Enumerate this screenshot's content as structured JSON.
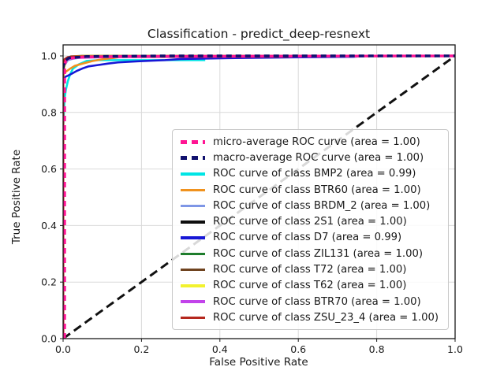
{
  "title": "Classification - predict_deep-resnext",
  "chart_data": {
    "type": "line",
    "title": "Classification - predict_deep-resnext",
    "xlabel": "False Positive Rate",
    "ylabel": "True Positive Rate",
    "xlim": [
      0.0,
      1.0
    ],
    "ylim": [
      0.0,
      1.039
    ],
    "xticks": [
      0.0,
      0.2,
      0.4,
      0.6,
      0.8,
      1.0
    ],
    "yticks": [
      0.0,
      0.2,
      0.4,
      0.6,
      0.8,
      1.0
    ],
    "grid": true,
    "grid_color": "#d9d9d9",
    "legend_position": "center-right",
    "reference_line": {
      "name": "chance-diagonal",
      "color": "#111111",
      "dash": "11 6",
      "width": 3,
      "points": [
        [
          0,
          0
        ],
        [
          1,
          1
        ]
      ]
    },
    "series": [
      {
        "name": "micro-average",
        "label": "micro-average ROC curve (area = 1.00)",
        "area": "1.00",
        "color": "#ff1493",
        "dash": "7 5",
        "width": 3.4,
        "points": [
          [
            0.004,
            0
          ],
          [
            0.004,
            0.97
          ],
          [
            0.008,
            0.985
          ],
          [
            0.02,
            0.992
          ],
          [
            0.05,
            0.996
          ],
          [
            0.15,
            0.998
          ],
          [
            0.5,
            0.999
          ],
          [
            1,
            1
          ]
        ]
      },
      {
        "name": "macro-average",
        "label": "macro-average ROC curve (area = 1.00)",
        "area": "1.00",
        "color": "#11116e",
        "dash": "7 5",
        "width": 3.4,
        "points": [
          [
            0,
            0.955
          ],
          [
            0.004,
            0.982
          ],
          [
            0.015,
            0.993
          ],
          [
            0.06,
            0.998
          ],
          [
            0.25,
            1
          ],
          [
            1,
            1
          ]
        ]
      },
      {
        "name": "BMP2",
        "label": "ROC curve of class BMP2 (area = 0.99)",
        "area": "0.99",
        "color": "#00e5e5",
        "dash": null,
        "width": 2.6,
        "points": [
          [
            0,
            0
          ],
          [
            0,
            0.74
          ],
          [
            0.002,
            0.8
          ],
          [
            0.004,
            0.85
          ],
          [
            0.007,
            0.88
          ],
          [
            0.012,
            0.91
          ],
          [
            0.018,
            0.935
          ],
          [
            0.025,
            0.955
          ],
          [
            0.04,
            0.97
          ],
          [
            0.06,
            0.982
          ],
          [
            0.09,
            0.985
          ],
          [
            0.36,
            0.985
          ],
          [
            0.36,
            0.998
          ],
          [
            0.4,
            1
          ],
          [
            1,
            1
          ]
        ]
      },
      {
        "name": "BTR60",
        "label": "ROC curve of class BTR60 (area = 1.00)",
        "area": "1.00",
        "color": "#f0921e",
        "dash": null,
        "width": 2.6,
        "points": [
          [
            0,
            0
          ],
          [
            0,
            0.935
          ],
          [
            0.008,
            0.945
          ],
          [
            0.018,
            0.955
          ],
          [
            0.03,
            0.965
          ],
          [
            0.05,
            0.973
          ],
          [
            0.075,
            0.982
          ],
          [
            0.1,
            0.988
          ],
          [
            0.13,
            0.993
          ],
          [
            0.15,
            0.997
          ],
          [
            0.17,
            1
          ],
          [
            1,
            1
          ]
        ]
      },
      {
        "name": "BRDM_2",
        "label": "ROC curve of class BRDM_2 (area = 1.00)",
        "area": "1.00",
        "color": "#7e96e6",
        "dash": null,
        "width": 2.6,
        "points": [
          [
            0,
            0
          ],
          [
            0,
            0.955
          ],
          [
            0.005,
            0.97
          ],
          [
            0.012,
            0.985
          ],
          [
            0.025,
            0.99
          ],
          [
            0.05,
            0.995
          ],
          [
            0.09,
            0.998
          ],
          [
            0.13,
            1
          ],
          [
            1,
            1
          ]
        ]
      },
      {
        "name": "2S1",
        "label": "ROC curve of class 2S1 (area = 1.00)",
        "area": "1.00",
        "color": "#0d0d0d",
        "dash": null,
        "width": 2.6,
        "points": [
          [
            0,
            0
          ],
          [
            0,
            0.965
          ],
          [
            0.004,
            0.985
          ],
          [
            0.012,
            0.992
          ],
          [
            0.03,
            0.996
          ],
          [
            0.06,
            1
          ],
          [
            1,
            1
          ]
        ]
      },
      {
        "name": "D7",
        "label": "ROC curve of class D7 (area = 0.99)",
        "area": "0.99",
        "color": "#1717d6",
        "dash": null,
        "width": 2.6,
        "points": [
          [
            0,
            0
          ],
          [
            0,
            0.9
          ],
          [
            0.004,
            0.925
          ],
          [
            0.012,
            0.93
          ],
          [
            0.022,
            0.937
          ],
          [
            0.035,
            0.947
          ],
          [
            0.05,
            0.956
          ],
          [
            0.065,
            0.963
          ],
          [
            0.09,
            0.968
          ],
          [
            0.115,
            0.973
          ],
          [
            0.14,
            0.977
          ],
          [
            0.19,
            0.981
          ],
          [
            0.26,
            0.985
          ],
          [
            0.3,
            0.989
          ],
          [
            0.42,
            0.992
          ],
          [
            0.58,
            0.995
          ],
          [
            0.74,
            0.997
          ],
          [
            0.78,
            1
          ],
          [
            1,
            1
          ]
        ]
      },
      {
        "name": "ZIL131",
        "label": "ROC curve of class ZIL131 (area = 1.00)",
        "area": "1.00",
        "color": "#1e7d2c",
        "dash": null,
        "width": 2.6,
        "points": [
          [
            0,
            0
          ],
          [
            0,
            0.97
          ],
          [
            0.006,
            0.988
          ],
          [
            0.018,
            0.995
          ],
          [
            0.05,
            1
          ],
          [
            1,
            1
          ]
        ]
      },
      {
        "name": "T72",
        "label": "ROC curve of class T72 (area = 1.00)",
        "area": "1.00",
        "color": "#6f431f",
        "dash": null,
        "width": 2.6,
        "points": [
          [
            0,
            0
          ],
          [
            0,
            0.975
          ],
          [
            0.008,
            0.992
          ],
          [
            0.02,
            0.998
          ],
          [
            0.045,
            1
          ],
          [
            1,
            1
          ]
        ]
      },
      {
        "name": "T62",
        "label": "ROC curve of class T62 (area = 1.00)",
        "area": "1.00",
        "color": "#f2f22e",
        "dash": null,
        "width": 2.6,
        "points": [
          [
            0,
            0
          ],
          [
            0,
            0.91
          ],
          [
            0.002,
            0.95
          ],
          [
            0.005,
            0.972
          ],
          [
            0.009,
            0.985
          ],
          [
            0.016,
            0.993
          ],
          [
            0.03,
            0.998
          ],
          [
            0.055,
            1
          ],
          [
            1,
            1
          ]
        ]
      },
      {
        "name": "BTR70",
        "label": "ROC curve of class BTR70 (area = 1.00)",
        "area": "1.00",
        "color": "#c243ea",
        "dash": null,
        "width": 2.6,
        "points": [
          [
            0,
            0
          ],
          [
            0,
            0.95
          ],
          [
            0.004,
            0.98
          ],
          [
            0.012,
            0.988
          ],
          [
            0.03,
            0.993
          ],
          [
            0.1,
            0.9955
          ],
          [
            0.4,
            0.997
          ],
          [
            0.76,
            0.998
          ],
          [
            0.78,
            1
          ],
          [
            1,
            1
          ]
        ]
      },
      {
        "name": "ZSU_23_4",
        "label": "ROC curve of class ZSU_23_4 (area = 1.00)",
        "area": "1.00",
        "color": "#b5281e",
        "dash": null,
        "width": 3,
        "points": [
          [
            0,
            0
          ],
          [
            0,
            0.968
          ],
          [
            0.004,
            0.988
          ],
          [
            0.012,
            0.995
          ],
          [
            0.025,
            0.997
          ],
          [
            0.05,
            0.998
          ],
          [
            0.58,
            0.998
          ],
          [
            0.585,
            1
          ],
          [
            1,
            1
          ]
        ]
      }
    ],
    "draw_order": [
      2,
      3,
      4,
      5,
      6,
      7,
      8,
      9,
      10,
      11,
      0,
      1
    ]
  }
}
